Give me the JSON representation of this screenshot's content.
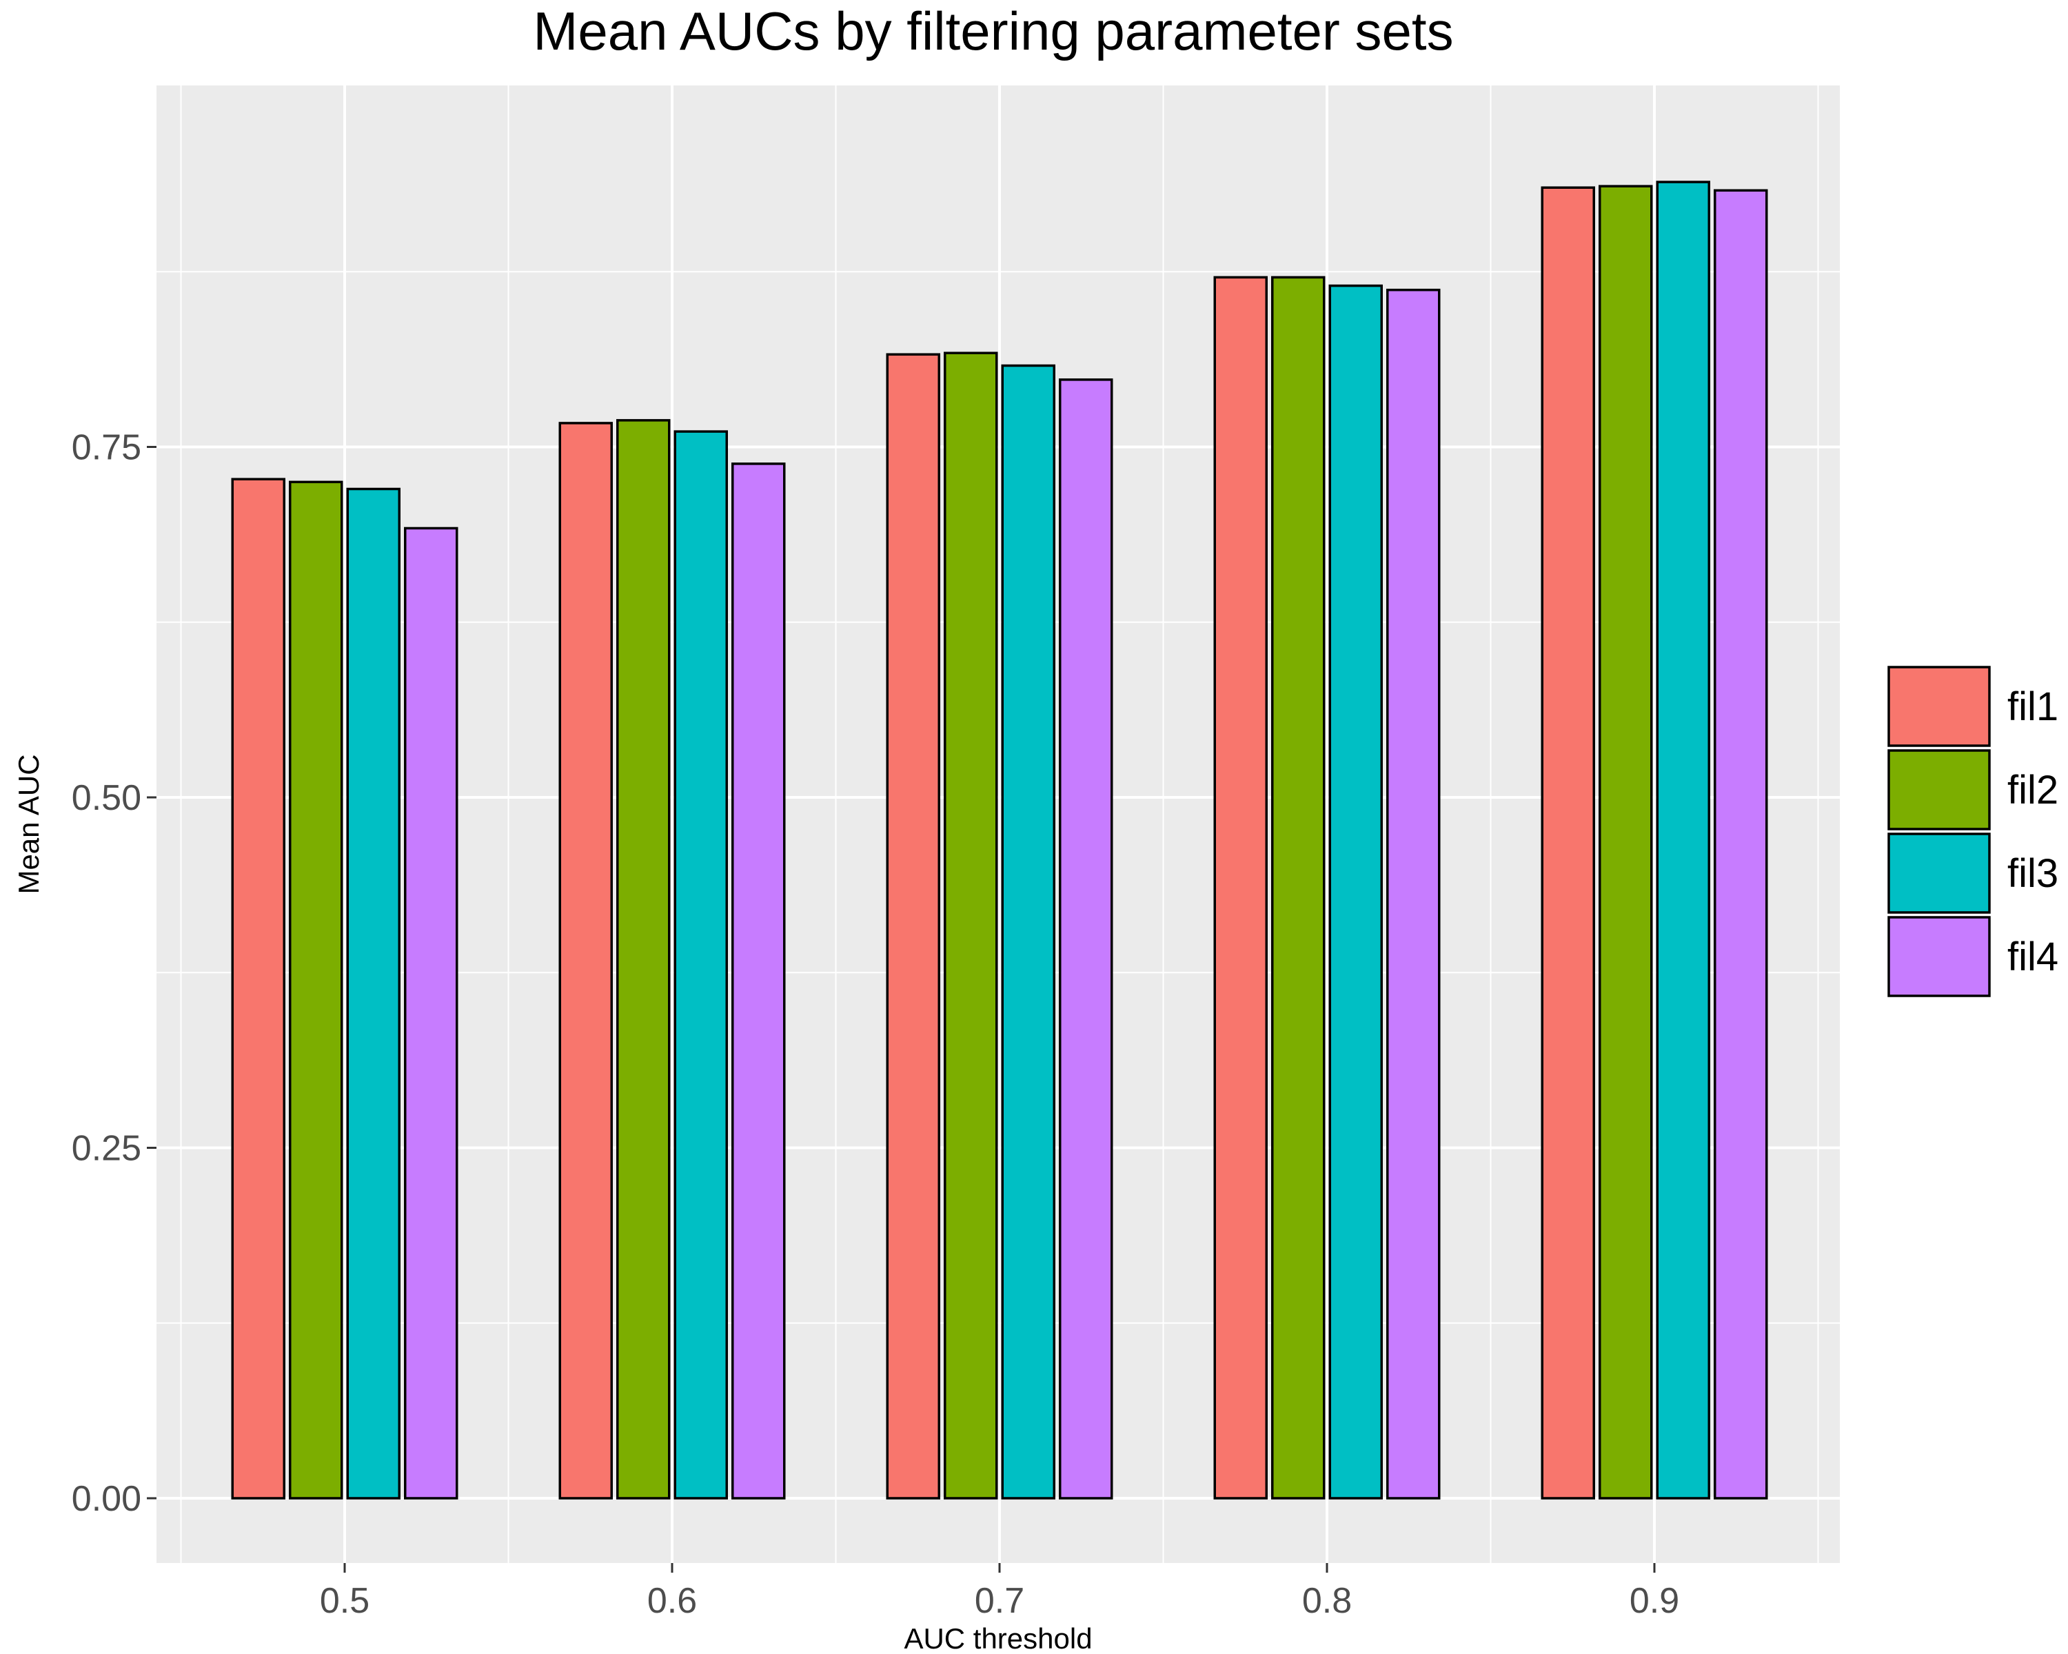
{
  "chart_data": {
    "type": "bar",
    "title": "Mean AUCs by filtering parameter sets",
    "xlabel": "AUC threshold",
    "ylabel": "Mean AUC",
    "categories": [
      "0.5",
      "0.6",
      "0.7",
      "0.8",
      "0.9"
    ],
    "x_tick_labels": [
      "0.5",
      "0.6",
      "0.7",
      "0.8",
      "0.9"
    ],
    "y_ticks": [
      0.0,
      0.25,
      0.5,
      0.75
    ],
    "y_tick_labels": [
      "0.00",
      "0.25",
      "0.50",
      "0.75"
    ],
    "ylim": [
      -0.05,
      1.0
    ],
    "grid": true,
    "legend_position": "right",
    "series": [
      {
        "name": "fil1",
        "color": "#F8766D",
        "values": [
          0.727,
          0.767,
          0.816,
          0.871,
          0.935
        ]
      },
      {
        "name": "fil2",
        "color": "#7CAE00",
        "values": [
          0.725,
          0.769,
          0.817,
          0.871,
          0.936
        ]
      },
      {
        "name": "fil3",
        "color": "#00BFC4",
        "values": [
          0.72,
          0.761,
          0.808,
          0.865,
          0.939
        ]
      },
      {
        "name": "fil4",
        "color": "#C77CFF",
        "values": [
          0.692,
          0.738,
          0.798,
          0.862,
          0.933
        ]
      }
    ]
  }
}
